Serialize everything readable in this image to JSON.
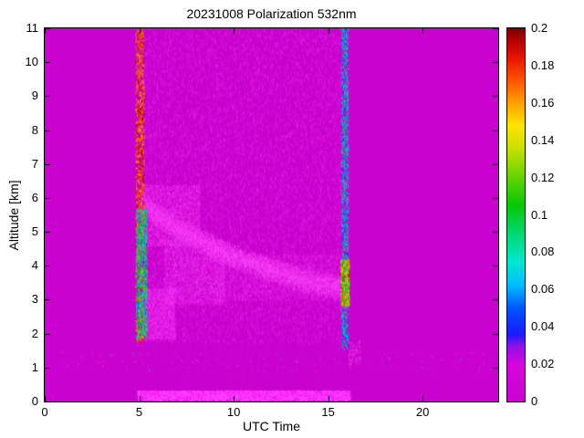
{
  "figure": {
    "title": "20231008 Polarization 532nm",
    "xlabel": "UTC Time",
    "ylabel": "Altitude [km]"
  },
  "chart_data": {
    "type": "heatmap",
    "title": "20231008 Polarization 532nm",
    "xlabel": "UTC Time",
    "ylabel": "Altitude [km]",
    "x_range": [
      0,
      24
    ],
    "y_range": [
      0,
      11
    ],
    "x_tick_values": [
      0,
      5,
      10,
      15,
      20
    ],
    "x_tick_labels": [
      "0",
      "5",
      "10",
      "15",
      "20"
    ],
    "y_tick_values": [
      0,
      1,
      2,
      3,
      4,
      5,
      6,
      7,
      8,
      9,
      10,
      11
    ],
    "y_tick_labels": [
      "0",
      "1",
      "2",
      "3",
      "4",
      "5",
      "6",
      "7",
      "8",
      "9",
      "10",
      "11"
    ],
    "grid": false,
    "legend": "colorbar-right",
    "background_value": 0,
    "colorbar": {
      "range": [
        0,
        0.2
      ],
      "tick_values": [
        0,
        0.02,
        0.04,
        0.06,
        0.08,
        0.1,
        0.12,
        0.14,
        0.16,
        0.18,
        0.2
      ],
      "tick_labels": [
        "0",
        "0.02",
        "0.04",
        "0.06",
        "0.08",
        "0.1",
        "0.12",
        "0.14",
        "0.16",
        "0.18",
        "0.2"
      ],
      "colormap_stops": [
        {
          "v": 0.0,
          "color": "#c903cf"
        },
        {
          "v": 0.02,
          "color": "#d705de"
        },
        {
          "v": 0.03,
          "color": "#8d12e8"
        },
        {
          "v": 0.036,
          "color": "#1a1aff"
        },
        {
          "v": 0.05,
          "color": "#0055ff"
        },
        {
          "v": 0.062,
          "color": "#00bbff"
        },
        {
          "v": 0.075,
          "color": "#00e8d0"
        },
        {
          "v": 0.09,
          "color": "#00d873"
        },
        {
          "v": 0.105,
          "color": "#06c906"
        },
        {
          "v": 0.12,
          "color": "#63d400"
        },
        {
          "v": 0.135,
          "color": "#c6e000"
        },
        {
          "v": 0.148,
          "color": "#ffe400"
        },
        {
          "v": 0.16,
          "color": "#ffa200"
        },
        {
          "v": 0.172,
          "color": "#ff5500"
        },
        {
          "v": 0.184,
          "color": "#e81600"
        },
        {
          "v": 0.194,
          "color": "#b30000"
        },
        {
          "v": 0.2,
          "color": "#7a0000"
        }
      ]
    },
    "features": [
      {
        "name": "measurement-band-noise",
        "kind": "speckle",
        "x": [
          4.85,
          16.0
        ],
        "y": [
          1.75,
          11
        ],
        "count": 26000,
        "size": [
          1,
          3
        ],
        "alpha": [
          0.18,
          0.55
        ],
        "colors": [
          "#e81ae8",
          "#d40cd8",
          "#b400bc",
          "#f02df0"
        ]
      },
      {
        "name": "band-vertical-streaks",
        "kind": "streaks",
        "x": [
          4.9,
          15.95
        ],
        "y": [
          1.8,
          11
        ],
        "count": 420,
        "len": [
          25,
          130
        ],
        "alpha": [
          0.04,
          0.1
        ],
        "color": "#ee22ee"
      },
      {
        "name": "descending-aerosol-layer",
        "kind": "path_band",
        "points": [
          [
            4.9,
            5.95
          ],
          [
            6,
            5.5
          ],
          [
            7,
            5.15
          ],
          [
            8,
            4.85
          ],
          [
            9,
            4.55
          ],
          [
            10,
            4.3
          ],
          [
            11,
            4.1
          ],
          [
            12,
            3.9
          ],
          [
            13,
            3.72
          ],
          [
            14,
            3.55
          ],
          [
            15,
            3.45
          ],
          [
            15.95,
            3.4
          ]
        ],
        "thickness": 0.8,
        "count": 9000,
        "size": [
          1,
          2
        ],
        "alpha": [
          0.15,
          0.5
        ],
        "colors": [
          "#ff40ff",
          "#f22df2",
          "#ff66ff"
        ]
      },
      {
        "name": "upper-left-haze",
        "kind": "speckle",
        "x": [
          5.0,
          8.2
        ],
        "y": [
          4.6,
          6.4
        ],
        "count": 5200,
        "size": [
          1,
          2
        ],
        "alpha": [
          0.1,
          0.3
        ],
        "colors": [
          "#ff4dff",
          "#f233f2"
        ]
      },
      {
        "name": "center-bright-blob",
        "kind": "speckle",
        "x": [
          6.3,
          9.5
        ],
        "y": [
          2.9,
          4.8
        ],
        "count": 5200,
        "size": [
          1,
          2
        ],
        "alpha": [
          0.1,
          0.32
        ],
        "colors": [
          "#ff4dff",
          "#f233f2"
        ]
      },
      {
        "name": "lower-left-cluster",
        "kind": "speckle",
        "x": [
          5.1,
          6.9
        ],
        "y": [
          1.85,
          3.35
        ],
        "count": 3200,
        "size": [
          1,
          2
        ],
        "alpha": [
          0.12,
          0.4
        ],
        "colors": [
          "#ff44ff",
          "#f22df2"
        ]
      },
      {
        "name": "mid-right-haze",
        "kind": "speckle",
        "x": [
          9.0,
          15.6
        ],
        "y": [
          3.0,
          4.35
        ],
        "count": 5200,
        "size": [
          1,
          2
        ],
        "alpha": [
          0.08,
          0.26
        ],
        "colors": [
          "#ff4dff",
          "#f233f2"
        ]
      },
      {
        "name": "surface-bright-band",
        "kind": "speckle",
        "x": [
          4.9,
          16.1
        ],
        "y": [
          0.07,
          0.33
        ],
        "count": 5200,
        "size": [
          2,
          2
        ],
        "alpha": [
          0.45,
          0.9
        ],
        "colors": [
          "#ff33ff",
          "#ff4dff",
          "#f716f7"
        ]
      },
      {
        "name": "left-edge-warm-speckle",
        "kind": "speckle",
        "x": [
          4.8,
          5.25
        ],
        "y": [
          1.8,
          11
        ],
        "count": 2000,
        "size": [
          1,
          2
        ],
        "alpha": [
          0.45,
          0.95
        ],
        "values": [
          0.15,
          0.2
        ]
      },
      {
        "name": "left-edge-cold-speckle",
        "kind": "speckle",
        "x": [
          4.82,
          5.4
        ],
        "y": [
          1.9,
          5.7
        ],
        "count": 1500,
        "size": [
          1,
          2
        ],
        "alpha": [
          0.5,
          0.95
        ],
        "values": [
          0.04,
          0.13
        ]
      },
      {
        "name": "right-edge-cold-speckle",
        "kind": "speckle",
        "x": [
          15.68,
          16.05
        ],
        "y": [
          1.6,
          11
        ],
        "count": 2000,
        "size": [
          1,
          2
        ],
        "alpha": [
          0.45,
          0.9
        ],
        "values": [
          0.03,
          0.1
        ]
      },
      {
        "name": "right-edge-hot-feature",
        "kind": "speckle",
        "x": [
          15.65,
          16.1
        ],
        "y": [
          2.85,
          4.2
        ],
        "count": 1100,
        "size": [
          1,
          2
        ],
        "alpha": [
          0.8,
          1.0
        ],
        "values": [
          0.08,
          0.2
        ]
      },
      {
        "name": "below-band-scattered-dots",
        "kind": "speckle",
        "x": [
          0.8,
          23.6
        ],
        "y": [
          0.85,
          1.5
        ],
        "count": 240,
        "size": [
          1,
          2
        ],
        "alpha": [
          0.15,
          0.45
        ],
        "colors": [
          "#e833e8",
          "#f04df0"
        ]
      },
      {
        "name": "right-low-cluster",
        "kind": "speckle",
        "x": [
          16.05,
          16.7
        ],
        "y": [
          1.1,
          1.8
        ],
        "count": 150,
        "size": [
          1,
          2
        ],
        "alpha": [
          0.2,
          0.5
        ],
        "colors": [
          "#ee2dee",
          "#f74df7"
        ]
      },
      {
        "name": "stray-cold-dots",
        "kind": "speckle",
        "x": [
          1.5,
          23.0
        ],
        "y": [
          0.95,
          1.45
        ],
        "count": 10,
        "size": [
          1,
          2
        ],
        "alpha": [
          0.5,
          0.8
        ],
        "values": [
          0.05,
          0.08
        ]
      }
    ]
  }
}
